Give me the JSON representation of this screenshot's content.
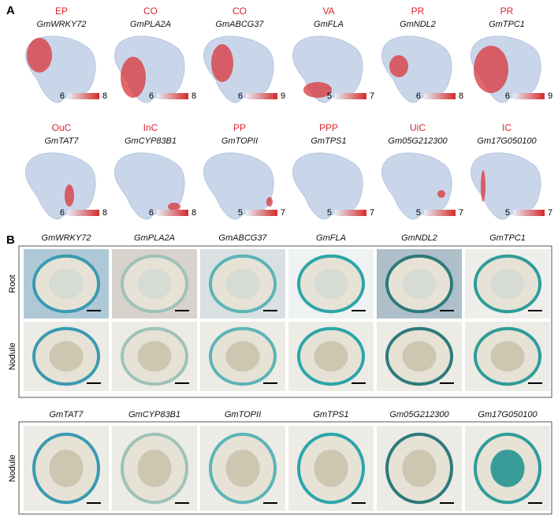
{
  "panel_a": {
    "label": "A",
    "plots": [
      {
        "cell_type": "EP",
        "gene": "GmWRKY72",
        "scale_min": 6,
        "scale_max": 8
      },
      {
        "cell_type": "CO",
        "gene": "GmPLA2A",
        "scale_min": 6,
        "scale_max": 8
      },
      {
        "cell_type": "CO",
        "gene": "GmABCG37",
        "scale_min": 6,
        "scale_max": 9
      },
      {
        "cell_type": "VA",
        "gene": "GmFLA",
        "scale_min": 5,
        "scale_max": 7
      },
      {
        "cell_type": "PR",
        "gene": "GmNDL2",
        "scale_min": 6,
        "scale_max": 8
      },
      {
        "cell_type": "PR",
        "gene": "GmTPC1",
        "scale_min": 6,
        "scale_max": 9
      },
      {
        "cell_type": "OuC",
        "gene": "GmTAT7",
        "scale_min": 6,
        "scale_max": 8
      },
      {
        "cell_type": "InC",
        "gene": "GmCYP83B1",
        "scale_min": 6,
        "scale_max": 8
      },
      {
        "cell_type": "PP",
        "gene": "GmTOPII",
        "scale_min": 5,
        "scale_max": 7
      },
      {
        "cell_type": "PPP",
        "gene": "GmTPS1",
        "scale_min": 5,
        "scale_max": 7
      },
      {
        "cell_type": "UiC",
        "gene": "Gm05G212300",
        "scale_min": 5,
        "scale_max": 7
      },
      {
        "cell_type": "IC",
        "gene": "Gm17G050100",
        "scale_min": 5,
        "scale_max": 7
      }
    ]
  },
  "panel_b": {
    "label": "B",
    "block1": {
      "genes": [
        "GmWRKY72",
        "GmPLA2A",
        "GmABCG37",
        "GmFLA",
        "GmNDL2",
        "GmTPC1"
      ],
      "rows": [
        "Root",
        "Nodule"
      ]
    },
    "block2": {
      "genes": [
        "GmTAT7",
        "GmCYP83B1",
        "GmTOPII",
        "GmTPS1",
        "Gm05G212300",
        "Gm17G050100"
      ],
      "rows": [
        "Nodule"
      ]
    }
  }
}
